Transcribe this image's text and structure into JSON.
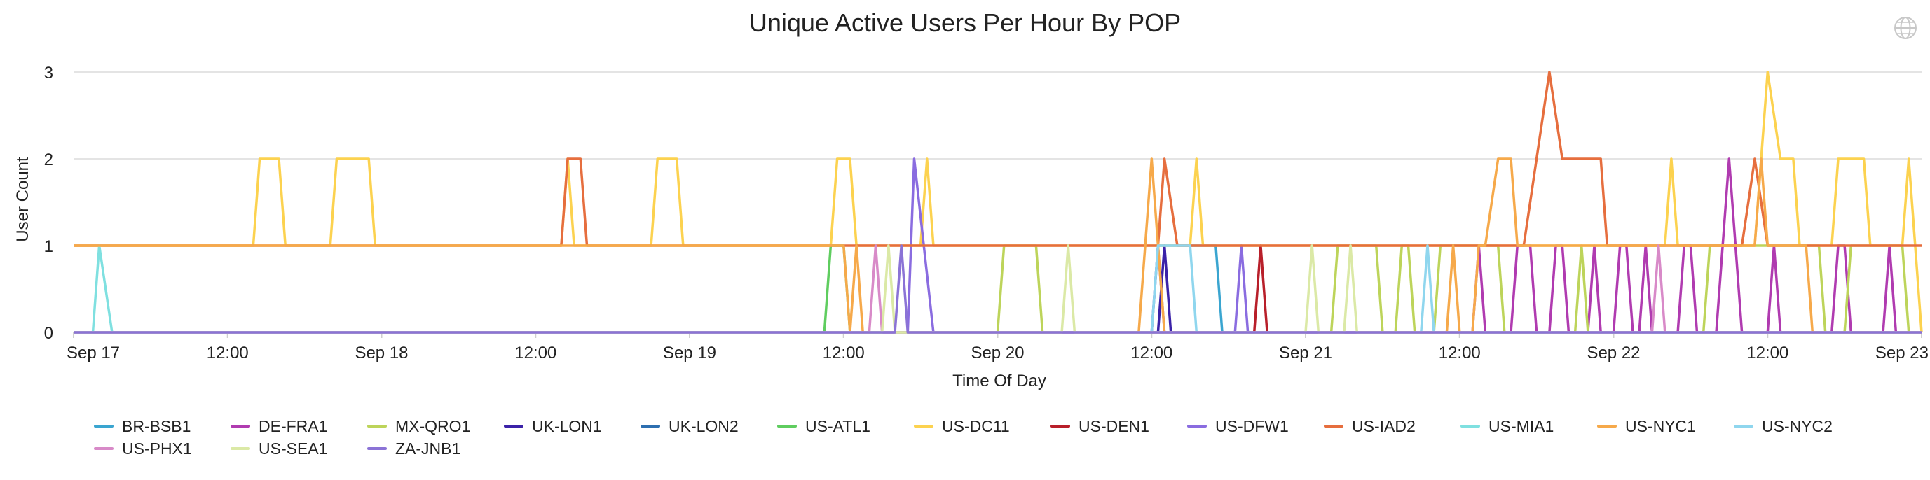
{
  "chart_data": {
    "type": "line",
    "title": "Unique Active Users Per Hour By POP",
    "xlabel": "Time Of Day",
    "ylabel": "User Count",
    "ylim": [
      0,
      3
    ],
    "y_ticks": [
      "0",
      "1",
      "2",
      "3"
    ],
    "x_ticks": [
      "Sep 17",
      "12:00",
      "Sep 18",
      "12:00",
      "Sep 19",
      "12:00",
      "Sep 20",
      "12:00",
      "Sep 21",
      "12:00",
      "Sep 22",
      "12:00",
      "Sep 23"
    ],
    "x_tick_hours": [
      0,
      12,
      24,
      36,
      48,
      60,
      72,
      84,
      96,
      108,
      120,
      132,
      144
    ],
    "xlim_hours": [
      0,
      144
    ],
    "grid": "horizontal",
    "legend_position": "bottom",
    "series": [
      {
        "name": "BR-BSB1",
        "color": "#3aa5d0",
        "points": [
          [
            0,
            0
          ],
          [
            84,
            0
          ],
          [
            84.5,
            1
          ],
          [
            89,
            1
          ],
          [
            89.5,
            0
          ],
          [
            144,
            0
          ]
        ]
      },
      {
        "name": "DE-FRA1",
        "color": "#b03bb0",
        "points": [
          [
            0,
            0
          ],
          [
            109,
            0
          ],
          [
            109.5,
            1
          ],
          [
            110,
            0
          ],
          [
            112,
            0
          ],
          [
            112.5,
            1
          ],
          [
            113.5,
            1
          ],
          [
            114,
            0
          ],
          [
            115,
            0
          ],
          [
            115.5,
            1
          ],
          [
            116,
            1
          ],
          [
            116.5,
            0
          ],
          [
            118,
            0
          ],
          [
            118.5,
            1
          ],
          [
            119,
            0
          ],
          [
            120,
            0
          ],
          [
            120.5,
            1
          ],
          [
            121,
            1
          ],
          [
            121.5,
            0
          ],
          [
            122,
            0
          ],
          [
            122.5,
            1
          ],
          [
            123,
            0
          ],
          [
            125,
            0
          ],
          [
            125.5,
            1
          ],
          [
            126,
            1
          ],
          [
            126.5,
            0
          ],
          [
            128,
            0
          ],
          [
            129,
            2
          ],
          [
            130,
            0
          ],
          [
            132,
            0
          ],
          [
            132.5,
            1
          ],
          [
            133,
            0
          ],
          [
            137,
            0
          ],
          [
            137.5,
            1
          ],
          [
            138,
            1
          ],
          [
            138.5,
            0
          ],
          [
            141,
            0
          ],
          [
            141.5,
            1
          ],
          [
            142,
            0
          ],
          [
            144,
            0
          ]
        ]
      },
      {
        "name": "MX-QRO1",
        "color": "#bdd45a",
        "points": [
          [
            0,
            0
          ],
          [
            72,
            0
          ],
          [
            72.5,
            1
          ],
          [
            75,
            1
          ],
          [
            75.5,
            0
          ],
          [
            98,
            0
          ],
          [
            98.5,
            1
          ],
          [
            101.5,
            1
          ],
          [
            102,
            0
          ],
          [
            103,
            0
          ],
          [
            103.5,
            1
          ],
          [
            104,
            1
          ],
          [
            104.5,
            0
          ],
          [
            106,
            0
          ],
          [
            106.5,
            1
          ],
          [
            111,
            1
          ],
          [
            111.5,
            0
          ],
          [
            117,
            0
          ],
          [
            117.5,
            1
          ],
          [
            118,
            0
          ],
          [
            127,
            0
          ],
          [
            127.5,
            1
          ],
          [
            136,
            1
          ],
          [
            136.5,
            0
          ],
          [
            138,
            0
          ],
          [
            138.5,
            1
          ],
          [
            142.5,
            1
          ],
          [
            143,
            0
          ],
          [
            144,
            0
          ]
        ]
      },
      {
        "name": "UK-LON1",
        "color": "#3b22a8",
        "points": [
          [
            0,
            0
          ],
          [
            84.5,
            0
          ],
          [
            85,
            1
          ],
          [
            85.5,
            0
          ],
          [
            144,
            0
          ]
        ]
      },
      {
        "name": "UK-LON2",
        "color": "#2d6fb0",
        "points": [
          [
            0,
            0
          ],
          [
            144,
            0
          ]
        ]
      },
      {
        "name": "US-ATL1",
        "color": "#5fcd5f",
        "points": [
          [
            0,
            0
          ],
          [
            58.5,
            0
          ],
          [
            59,
            1
          ],
          [
            60,
            1
          ],
          [
            60.5,
            0
          ],
          [
            144,
            0
          ]
        ]
      },
      {
        "name": "US-DC11",
        "color": "#fcd24f",
        "points": [
          [
            0,
            1
          ],
          [
            14,
            1
          ],
          [
            14.5,
            2
          ],
          [
            16,
            2
          ],
          [
            16.5,
            1
          ],
          [
            20,
            1
          ],
          [
            20.5,
            2
          ],
          [
            23,
            2
          ],
          [
            23.5,
            1
          ],
          [
            38,
            1
          ],
          [
            38.5,
            2
          ],
          [
            39,
            1
          ],
          [
            45,
            1
          ],
          [
            45.5,
            2
          ],
          [
            47,
            2
          ],
          [
            47.5,
            1
          ],
          [
            59,
            1
          ],
          [
            59.5,
            2
          ],
          [
            60.5,
            2
          ],
          [
            61,
            1
          ],
          [
            66,
            1
          ],
          [
            66.5,
            2
          ],
          [
            67,
            1
          ],
          [
            87,
            1
          ],
          [
            87.5,
            2
          ],
          [
            88,
            1
          ],
          [
            124,
            1
          ],
          [
            124.5,
            2
          ],
          [
            125,
            1
          ],
          [
            131,
            1
          ],
          [
            132,
            3
          ],
          [
            133,
            2
          ],
          [
            134,
            2
          ],
          [
            134.5,
            1
          ],
          [
            137,
            1
          ],
          [
            137.5,
            2
          ],
          [
            139.5,
            2
          ],
          [
            140,
            1
          ],
          [
            142.5,
            1
          ],
          [
            143,
            2
          ],
          [
            144,
            0
          ]
        ]
      },
      {
        "name": "US-DEN1",
        "color": "#b81f2a",
        "points": [
          [
            0,
            0
          ],
          [
            92,
            0
          ],
          [
            92.5,
            1
          ],
          [
            93,
            0
          ],
          [
            144,
            0
          ]
        ]
      },
      {
        "name": "US-DFW1",
        "color": "#8a6ce0",
        "points": [
          [
            0,
            0
          ],
          [
            65,
            0
          ],
          [
            65.5,
            2
          ],
          [
            67,
            0
          ],
          [
            84,
            0
          ],
          [
            84.5,
            1
          ],
          [
            85,
            0
          ],
          [
            90.5,
            0
          ],
          [
            91,
            1
          ],
          [
            91.5,
            0
          ],
          [
            144,
            0
          ]
        ]
      },
      {
        "name": "US-IAD2",
        "color": "#e66e3e",
        "points": [
          [
            0,
            1
          ],
          [
            38,
            1
          ],
          [
            38.5,
            2
          ],
          [
            39.5,
            2
          ],
          [
            40,
            1
          ],
          [
            134,
            1
          ],
          [
            134.5,
            1
          ],
          [
            59,
            1
          ],
          [
            59.5,
            1
          ],
          [
            84.5,
            1
          ],
          [
            85,
            2
          ],
          [
            86,
            1
          ],
          [
            111,
            1
          ],
          [
            113,
            1
          ],
          [
            114,
            2
          ],
          [
            115,
            3
          ],
          [
            116,
            2
          ],
          [
            119,
            2
          ],
          [
            119.5,
            1
          ],
          [
            130,
            1
          ],
          [
            131,
            2
          ],
          [
            132,
            1
          ],
          [
            144,
            1
          ]
        ]
      },
      {
        "name": "US-MIA1",
        "color": "#7fe0e0",
        "points": [
          [
            0,
            0
          ],
          [
            1.5,
            0
          ],
          [
            2,
            1
          ],
          [
            3,
            0
          ],
          [
            144,
            0
          ]
        ]
      },
      {
        "name": "US-NYC1",
        "color": "#f6a94a",
        "points": [
          [
            0,
            1
          ],
          [
            60,
            1
          ],
          [
            60.5,
            0
          ],
          [
            61,
            1
          ],
          [
            61.5,
            0
          ],
          [
            83,
            0
          ],
          [
            84,
            2
          ],
          [
            84.5,
            1
          ],
          [
            85,
            0
          ],
          [
            107,
            0
          ],
          [
            107.5,
            1
          ],
          [
            108,
            0
          ],
          [
            109,
            0
          ],
          [
            109.5,
            1
          ],
          [
            110,
            1
          ],
          [
            111,
            2
          ],
          [
            112,
            2
          ],
          [
            112.5,
            1
          ],
          [
            131,
            1
          ],
          [
            131.5,
            2
          ],
          [
            132,
            1
          ],
          [
            135,
            1
          ],
          [
            135.5,
            0
          ],
          [
            144,
            0
          ]
        ]
      },
      {
        "name": "US-NYC2",
        "color": "#8fd6ee",
        "points": [
          [
            0,
            0
          ],
          [
            84,
            0
          ],
          [
            84.5,
            1
          ],
          [
            87,
            1
          ],
          [
            87.5,
            0
          ],
          [
            105,
            0
          ],
          [
            105.5,
            1
          ],
          [
            106,
            0
          ],
          [
            144,
            0
          ]
        ]
      },
      {
        "name": "US-PHX1",
        "color": "#d88ac8",
        "points": [
          [
            0,
            0
          ],
          [
            62,
            0
          ],
          [
            62.5,
            1
          ],
          [
            63,
            0
          ],
          [
            123,
            0
          ],
          [
            123.5,
            1
          ],
          [
            124,
            0
          ],
          [
            144,
            0
          ]
        ]
      },
      {
        "name": "US-SEA1",
        "color": "#dbe9a6",
        "points": [
          [
            0,
            0
          ],
          [
            63,
            0
          ],
          [
            63.5,
            1
          ],
          [
            64,
            0
          ],
          [
            77,
            0
          ],
          [
            77.5,
            1
          ],
          [
            78,
            0
          ],
          [
            96,
            0
          ],
          [
            96.5,
            1
          ],
          [
            97,
            0
          ],
          [
            99,
            0
          ],
          [
            99.5,
            1
          ],
          [
            100,
            0
          ],
          [
            144,
            0
          ]
        ]
      },
      {
        "name": "ZA-JNB1",
        "color": "#8b73d6",
        "points": [
          [
            0,
            0
          ],
          [
            64,
            0
          ],
          [
            64.5,
            1
          ],
          [
            65,
            0
          ],
          [
            144,
            0
          ]
        ]
      }
    ]
  }
}
